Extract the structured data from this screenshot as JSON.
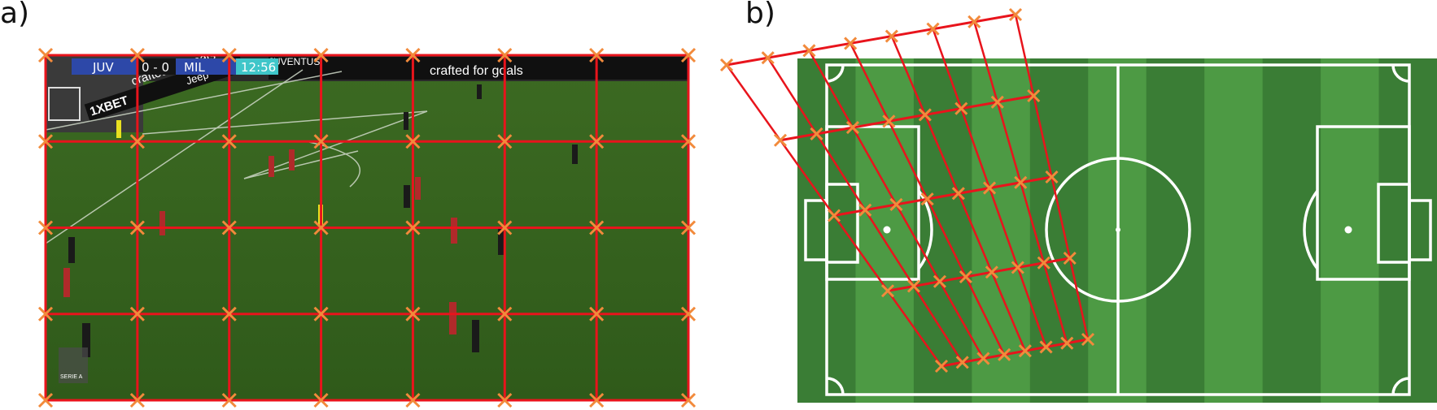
{
  "panels": [
    {
      "label": "a)"
    },
    {
      "label": "b)"
    }
  ],
  "broadcast": {
    "home_team": "JUV",
    "score": "0 - 0",
    "away_team": "MIL",
    "clock": "12:56",
    "league_badge": "SERIE A",
    "sponsor_1": "crafted for goals",
    "sponsor_2": "1XBET",
    "sponsor_3": "Jeep",
    "sponsor_4": "JUVENTUS"
  },
  "overlay": {
    "line_color": "#e8141c",
    "marker_color": "#f28a3b",
    "grid_columns": 7,
    "grid_rows": 4
  },
  "pitch": {
    "stripe_light": "#4d9a44",
    "stripe_dark": "#3a7d35",
    "line_color": "#ffffff"
  }
}
